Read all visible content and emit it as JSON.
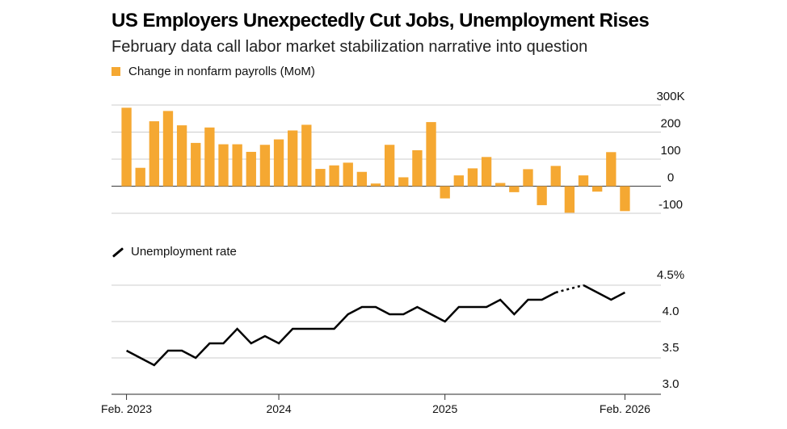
{
  "header": {
    "title": "US Employers Unexpectedly Cut Jobs, Unemployment Rises",
    "subtitle": "February data call labor market stabilization narrative into question"
  },
  "colors": {
    "bar": "#F5A832",
    "line": "#000000",
    "grid": "#cccccc",
    "zero": "#555555"
  },
  "chart_data": [
    {
      "type": "bar",
      "title": "Change in nonfarm payrolls (MoM)",
      "legend_label": "Change in nonfarm payrolls (MoM)",
      "y_ticks": [
        "300K",
        "200",
        "100",
        "0",
        "-100"
      ],
      "y_tick_values": [
        300,
        200,
        100,
        0,
        -100
      ],
      "ylim": [
        -100,
        300
      ],
      "categories": [
        "Feb 2023",
        "Mar 2023",
        "Apr 2023",
        "May 2023",
        "Jun 2023",
        "Jul 2023",
        "Aug 2023",
        "Sep 2023",
        "Oct 2023",
        "Nov 2023",
        "Dec 2023",
        "Jan 2024",
        "Feb 2024",
        "Mar 2024",
        "Apr 2024",
        "May 2024",
        "Jun 2024",
        "Jul 2024",
        "Aug 2024",
        "Sep 2024",
        "Oct 2024",
        "Nov 2024",
        "Dec 2024",
        "Jan 2025",
        "Feb 2025",
        "Mar 2025",
        "Apr 2025",
        "May 2025",
        "Jun 2025",
        "Jul 2025",
        "Aug 2025",
        "Sep 2025",
        "Oct 2025",
        "Nov 2025",
        "Dec 2025",
        "Jan 2026",
        "Feb 2026"
      ],
      "values": [
        290,
        68,
        240,
        278,
        225,
        160,
        217,
        155,
        155,
        127,
        153,
        173,
        206,
        227,
        64,
        77,
        87,
        53,
        10,
        153,
        33,
        133,
        237,
        -45,
        40,
        66,
        108,
        12,
        -22,
        63,
        -70,
        75,
        -98,
        40,
        -20,
        126,
        -92
      ]
    },
    {
      "type": "line",
      "title": "Unemployment rate",
      "legend_label": "Unemployment rate",
      "y_ticks": [
        "4.5%",
        "4.0",
        "3.5",
        "3.0"
      ],
      "y_tick_values": [
        4.5,
        4.0,
        3.5,
        3.0
      ],
      "ylim": [
        3.0,
        4.5
      ],
      "x_tick_labels": [
        "Feb. 2023",
        "2024",
        "2025",
        "Feb. 2026"
      ],
      "x_tick_indices": [
        0,
        11,
        23,
        36
      ],
      "values": [
        3.6,
        3.5,
        3.4,
        3.6,
        3.6,
        3.5,
        3.7,
        3.7,
        3.9,
        3.7,
        3.8,
        3.7,
        3.9,
        3.9,
        3.9,
        3.9,
        4.1,
        4.2,
        4.2,
        4.1,
        4.1,
        4.2,
        4.1,
        4.0,
        4.2,
        4.2,
        4.2,
        4.3,
        4.1,
        4.3,
        4.3,
        4.4,
        null,
        4.5,
        4.4,
        4.3,
        4.4
      ],
      "dotted_segment": {
        "from_index": 31,
        "to_index": 33
      }
    }
  ]
}
